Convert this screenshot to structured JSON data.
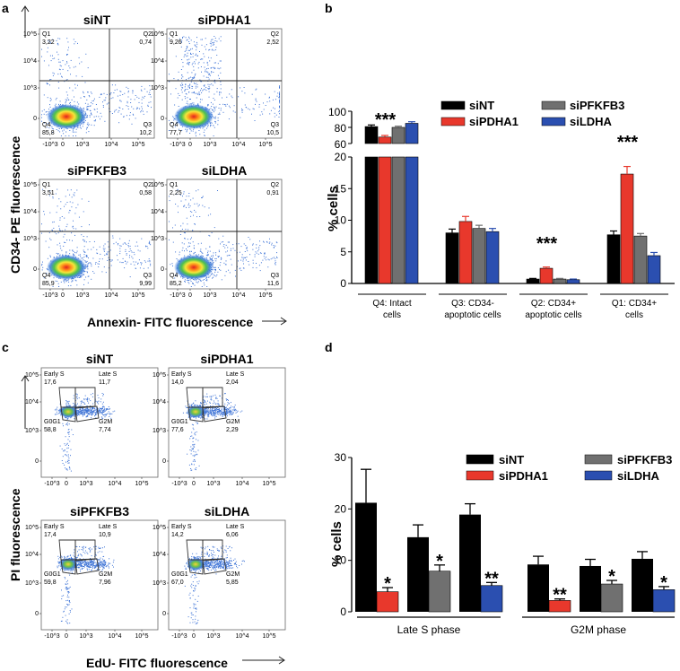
{
  "panel_letters": {
    "a": "a",
    "b": "b",
    "c": "c",
    "d": "d"
  },
  "colors": {
    "siNT": "#000000",
    "siPDHA1": "#e8382c",
    "siPFKFB3": "#707070",
    "siLDHA": "#2b4fb0"
  },
  "panel_a": {
    "y_axis_title": "CD34- PE fluorescence",
    "x_axis_title": "Annexin- FITC fluorescence",
    "y_ticks": [
      "10^5",
      "10^4",
      "10^3",
      "0"
    ],
    "x_ticks": [
      "-10^3",
      "0",
      "10^3",
      "10^4",
      "10^5"
    ],
    "plots": [
      {
        "title": "siNT",
        "q1": "Q1",
        "q1v": "3,22",
        "q2": "Q2",
        "q2v": "0,74",
        "q3": "Q3",
        "q3v": "10,2",
        "q4": "Q4",
        "q4v": "85,8"
      },
      {
        "title": "siPDHA1",
        "q1": "Q1",
        "q1v": "9,26",
        "q2": "Q2",
        "q2v": "2,52",
        "q3": "Q3",
        "q3v": "10,5",
        "q4": "Q4",
        "q4v": "77,7"
      },
      {
        "title": "siPFKFB3",
        "q1": "Q1",
        "q1v": "3,51",
        "q2": "Q2",
        "q2v": "0,58",
        "q3": "Q3",
        "q3v": "9,99",
        "q4": "Q4",
        "q4v": "85,9"
      },
      {
        "title": "siLDHA",
        "q1": "Q1",
        "q1v": "2,25",
        "q2": "Q2",
        "q2v": "0,91",
        "q3": "Q3",
        "q3v": "11,6",
        "q4": "Q4",
        "q4v": "85,2"
      }
    ]
  },
  "panel_c": {
    "y_axis_title": "PI fluorescence",
    "x_axis_title": "EdU- FITC fluorescence",
    "y_ticks": [
      "10^5",
      "10^4",
      "10^3",
      "0"
    ],
    "x_ticks": [
      "-10^3",
      "0",
      "10^3",
      "10^4",
      "10^5"
    ],
    "plots": [
      {
        "title": "siNT",
        "early": "Early S",
        "earlyv": "17,6",
        "late": "Late S",
        "latev": "11,7",
        "g0": "G0G1",
        "g0v": "58,8",
        "g2": "G2M",
        "g2v": "7,74"
      },
      {
        "title": "siPDHA1",
        "early": "Early S",
        "earlyv": "14,0",
        "late": "Late S",
        "latev": "2,04",
        "g0": "G0G1",
        "g0v": "77,6",
        "g2": "G2M",
        "g2v": "2,29"
      },
      {
        "title": "siPFKFB3",
        "early": "Early S",
        "earlyv": "17,4",
        "late": "Late S",
        "latev": "10,9",
        "g0": "G0G1",
        "g0v": "59,8",
        "g2": "G2M",
        "g2v": "7,96"
      },
      {
        "title": "siLDHA",
        "early": "Early S",
        "earlyv": "14,2",
        "late": "Late S",
        "latev": "6,06",
        "g0": "G0G1",
        "g0v": "67,0",
        "g2": "G2M",
        "g2v": "5,85"
      }
    ]
  },
  "chart_data": [
    {
      "type": "bar",
      "panel": "b",
      "ylabel": "% cells",
      "ylim_lower": [
        0,
        20
      ],
      "ylim_upper": [
        60,
        100
      ],
      "yticks_lower": [
        0,
        5,
        10,
        15,
        20
      ],
      "yticks_upper": [
        60,
        80,
        100
      ],
      "legend_placement": "top-right",
      "categories": [
        "Q4: Intact cells",
        "Q3: CD34- apoptotic cells",
        "Q2: CD34+ apoptotic cells",
        "Q1: CD34+ cells"
      ],
      "category_lines": [
        [
          "Q4: Intact",
          "cells"
        ],
        [
          "Q3: CD34-",
          "apoptotic cells"
        ],
        [
          "Q2: CD34+",
          "apoptotic cells"
        ],
        [
          "Q1: CD34+",
          "cells"
        ]
      ],
      "series": [
        {
          "name": "siNT",
          "values": [
            81,
            8.0,
            0.7,
            7.7
          ],
          "errors": [
            2,
            0.6,
            0.1,
            0.6
          ]
        },
        {
          "name": "siPDHA1",
          "values": [
            68,
            9.8,
            2.4,
            17.3
          ],
          "errors": [
            2,
            0.8,
            0.2,
            1.2
          ]
        },
        {
          "name": "siPFKFB3",
          "values": [
            80,
            8.7,
            0.7,
            7.5
          ],
          "errors": [
            1.5,
            0.5,
            0.1,
            0.4
          ]
        },
        {
          "name": "siLDHA",
          "values": [
            85,
            8.2,
            0.6,
            4.4
          ],
          "errors": [
            2,
            0.5,
            0.1,
            0.5
          ]
        }
      ],
      "annotations": [
        {
          "text": "***",
          "category": 0
        },
        {
          "text": "***",
          "category": 2
        },
        {
          "text": "***",
          "category": 3
        }
      ]
    },
    {
      "type": "bar",
      "panel": "d",
      "ylabel": "% cells",
      "ylim": [
        0,
        30
      ],
      "yticks": [
        0,
        10,
        20,
        30
      ],
      "legend_placement": "top-right",
      "groups": [
        "Late S phase",
        "G2M phase"
      ],
      "series": [
        {
          "name": "siNT",
          "values": [
            21.2,
            14.5,
            18.9,
            9.2,
            8.9,
            10.3
          ],
          "errors": [
            6.5,
            2.4,
            2.1,
            1.6,
            1.3,
            1.4
          ]
        },
        {
          "name": "siPDHA1",
          "values": [
            3.9,
            null,
            null,
            2.2,
            null,
            null
          ],
          "errors": [
            0.8,
            null,
            null,
            0.3,
            null,
            null
          ]
        },
        {
          "name": "siPFKFB3",
          "values": [
            null,
            7.9,
            null,
            null,
            5.4,
            null
          ],
          "errors": [
            null,
            1.2,
            null,
            null,
            0.7,
            null
          ]
        },
        {
          "name": "siLDHA",
          "values": [
            null,
            null,
            5.1,
            null,
            null,
            4.3
          ],
          "errors": [
            null,
            null,
            0.6,
            null,
            null,
            0.6
          ]
        }
      ],
      "pairs": [
        {
          "group": 0,
          "control": 21.2,
          "control_err": 6.5,
          "treated": "siPDHA1",
          "value": 3.9,
          "err": 0.8,
          "sig": "*"
        },
        {
          "group": 0,
          "control": 14.5,
          "control_err": 2.4,
          "treated": "siPFKFB3",
          "value": 7.9,
          "err": 1.2,
          "sig": "*"
        },
        {
          "group": 0,
          "control": 18.9,
          "control_err": 2.1,
          "treated": "siLDHA",
          "value": 5.1,
          "err": 0.6,
          "sig": "**"
        },
        {
          "group": 1,
          "control": 9.2,
          "control_err": 1.6,
          "treated": "siPDHA1",
          "value": 2.2,
          "err": 0.3,
          "sig": "**"
        },
        {
          "group": 1,
          "control": 8.9,
          "control_err": 1.3,
          "treated": "siPFKFB3",
          "value": 5.4,
          "err": 0.7,
          "sig": "*"
        },
        {
          "group": 1,
          "control": 10.3,
          "control_err": 1.4,
          "treated": "siLDHA",
          "value": 4.3,
          "err": 0.6,
          "sig": "*"
        }
      ]
    }
  ]
}
